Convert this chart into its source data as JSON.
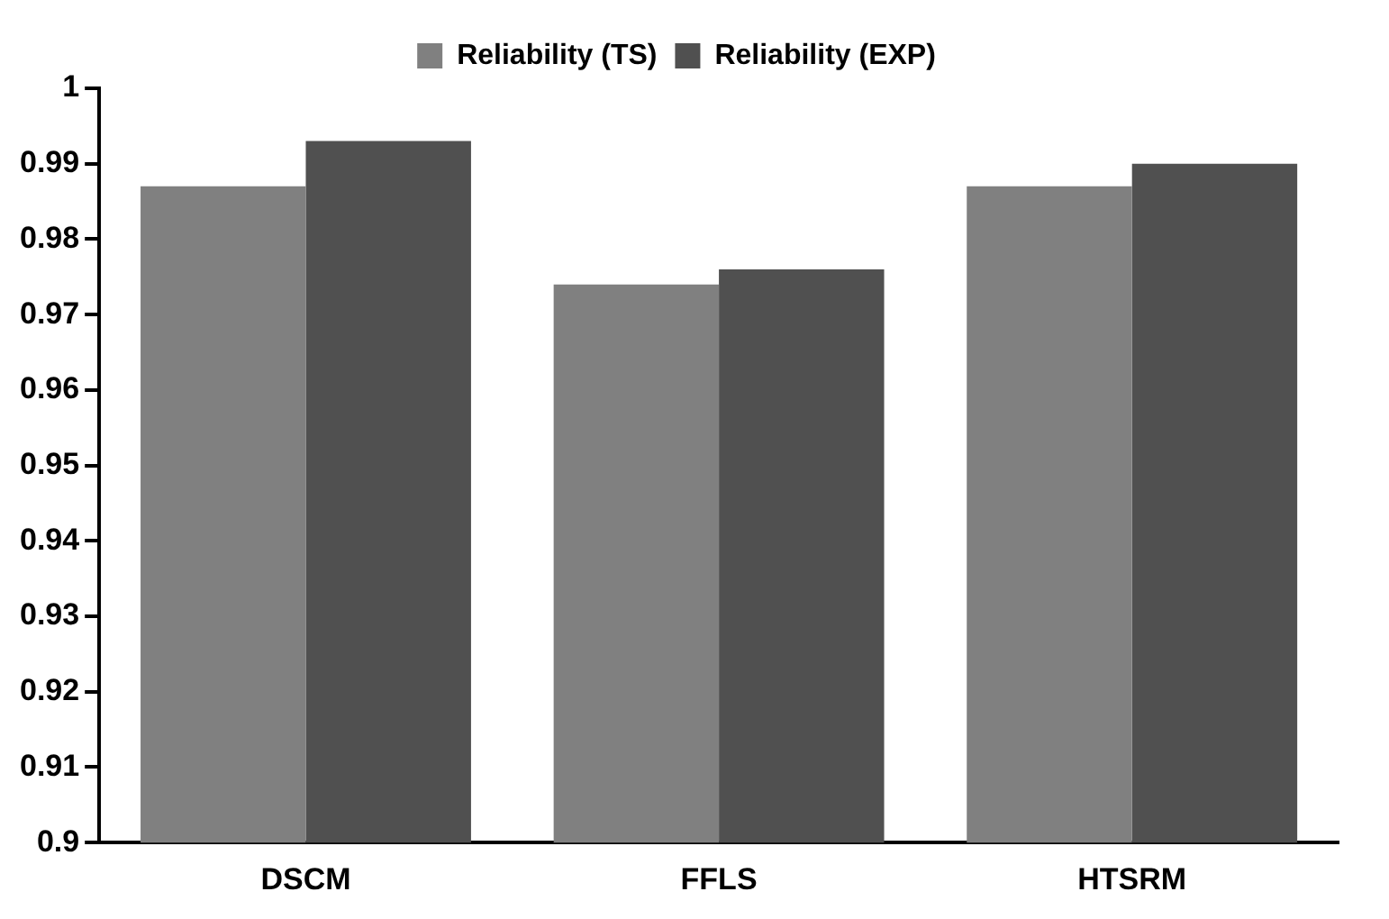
{
  "chart_data": {
    "type": "bar",
    "categories": [
      "DSCM",
      "FFLS",
      "HTSRM"
    ],
    "series": [
      {
        "name": "Reliability (TS)",
        "color": "#808080",
        "values": [
          0.987,
          0.974,
          0.987
        ]
      },
      {
        "name": "Reliability (EXP)",
        "color": "#505050",
        "values": [
          0.993,
          0.976,
          0.99
        ]
      }
    ],
    "ylim": [
      0.9,
      1
    ],
    "yticks": [
      0.9,
      0.91,
      0.92,
      0.93,
      0.94,
      0.95,
      0.96,
      0.97,
      0.98,
      0.99,
      1
    ],
    "grid": false,
    "legend": "top"
  }
}
